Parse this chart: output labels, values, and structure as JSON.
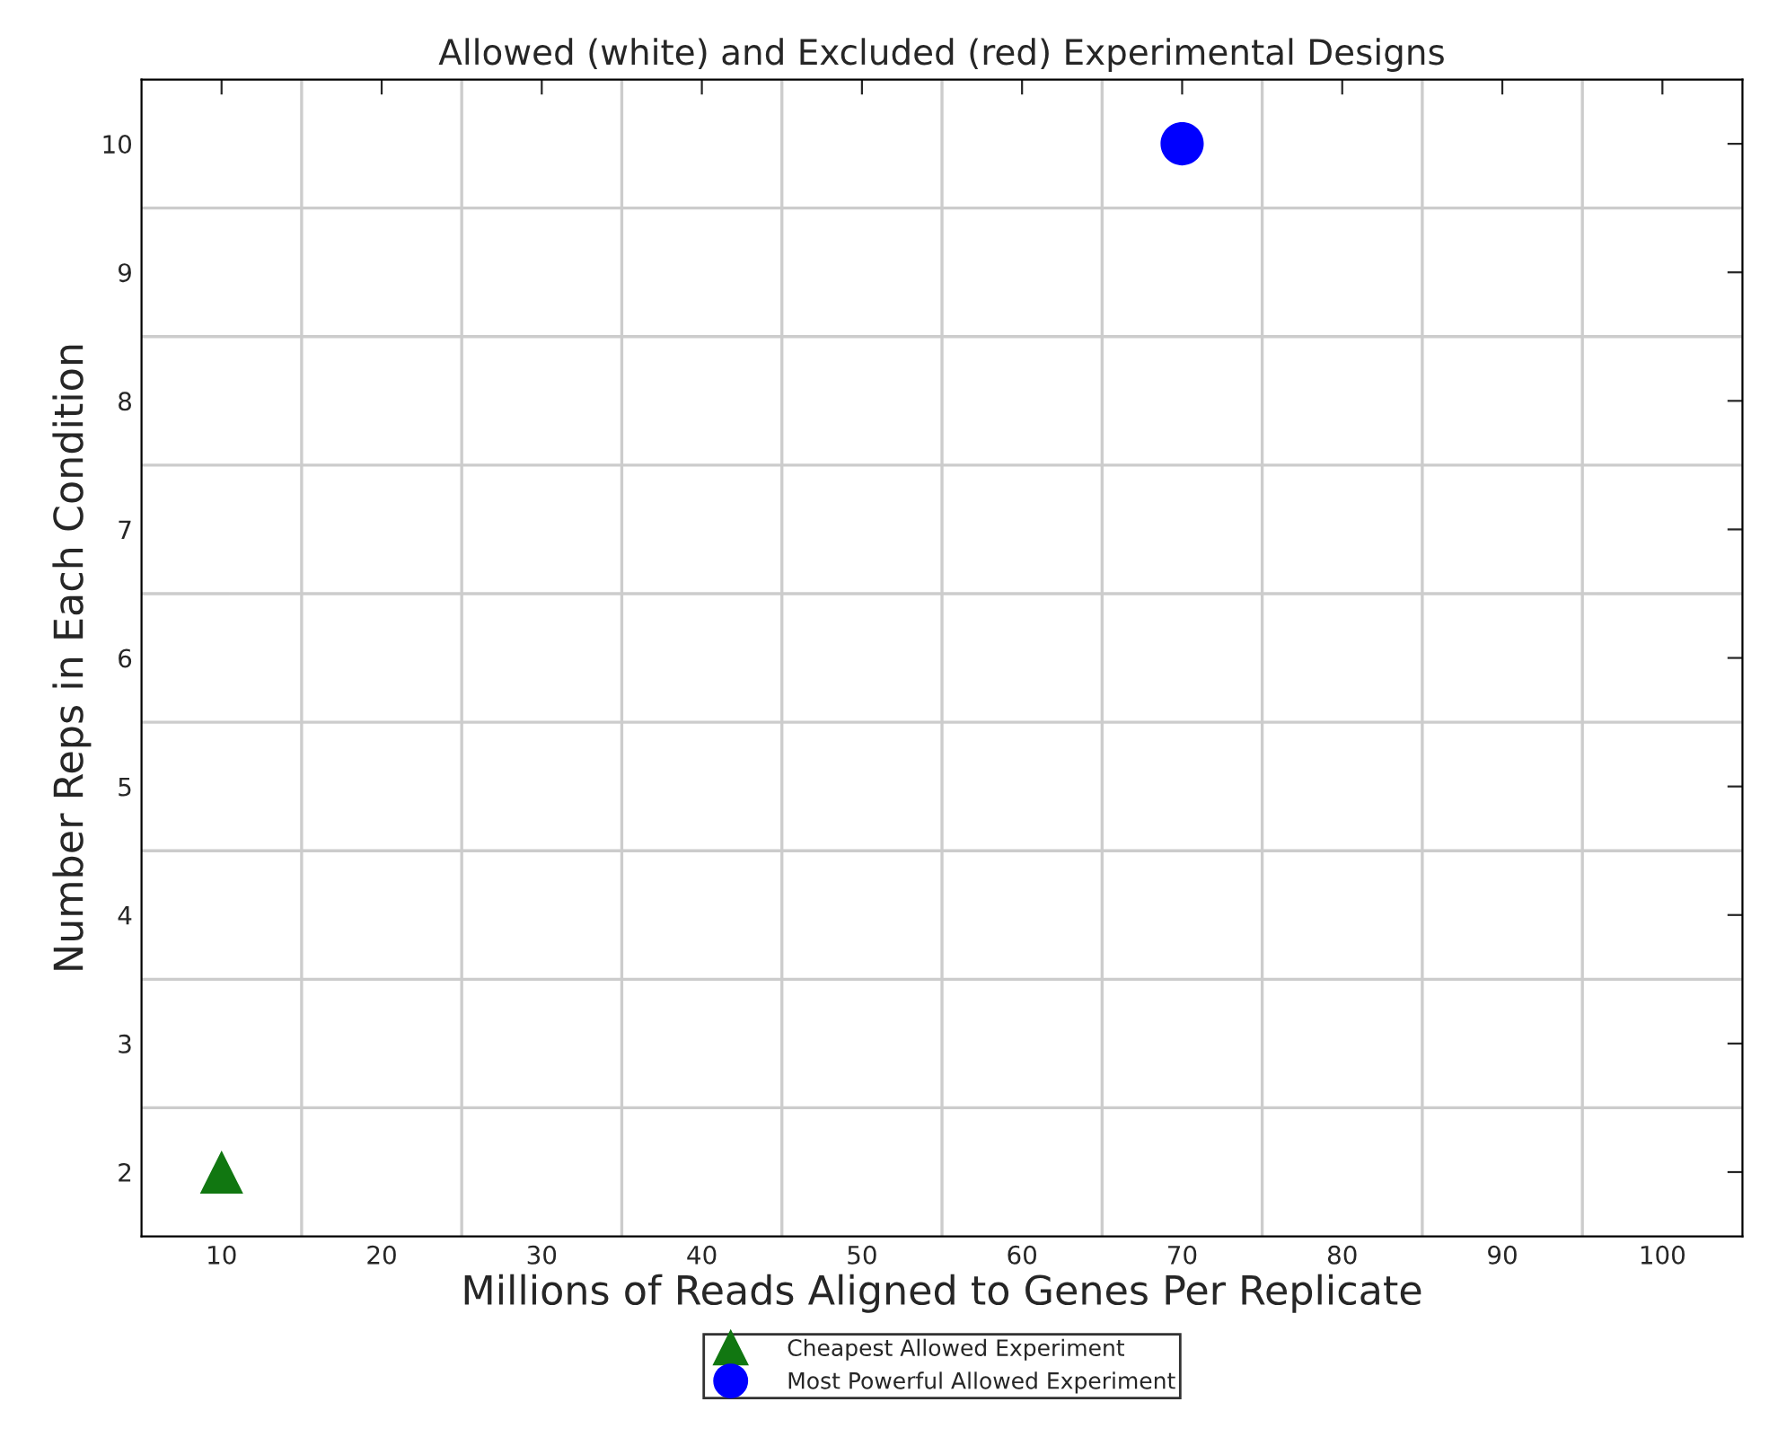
{
  "chart_data": {
    "type": "scatter",
    "title": "Allowed (white) and Excluded (red) Experimental Designs",
    "xlabel": "Millions of Reads Aligned to Genes Per Replicate",
    "ylabel": "Number Reps in Each Condition",
    "series": [
      {
        "name": "Cheapest Allowed Experiment",
        "color": "#117711",
        "marker": "triangle",
        "x": [
          10
        ],
        "values": [
          2
        ]
      },
      {
        "name": "Most Powerful Allowed Experiment",
        "color": "#0000ff",
        "marker": "circle",
        "x": [
          70
        ],
        "values": [
          10
        ]
      }
    ],
    "xlim": [
      5,
      105
    ],
    "ylim": [
      1.5,
      10.5
    ],
    "xticks": [
      10,
      {
        "value": 15,
        "label": null
      },
      20,
      {
        "value": 25,
        "label": null
      },
      30,
      {
        "value": 35,
        "label": null
      },
      40,
      {
        "value": 45,
        "label": null
      },
      50,
      {
        "value": 55,
        "label": null
      },
      60,
      {
        "value": 65,
        "label": null
      },
      70,
      {
        "value": 75,
        "label": null
      },
      80,
      {
        "value": 85,
        "label": null
      },
      90,
      {
        "value": 95,
        "label": null
      },
      100
    ],
    "yticks": [
      2,
      {
        "value": 2.5,
        "label": null
      },
      3,
      {
        "value": 3.5,
        "label": null
      },
      4,
      {
        "value": 4.5,
        "label": null
      },
      5,
      {
        "value": 5.5,
        "label": null
      },
      6,
      {
        "value": 6.5,
        "label": null
      },
      7,
      {
        "value": 7.5,
        "label": null
      },
      8,
      {
        "value": 8.5,
        "label": null
      },
      9,
      {
        "value": 9.5,
        "label": null
      },
      10
    ],
    "grid": true,
    "legend": "bottom"
  }
}
